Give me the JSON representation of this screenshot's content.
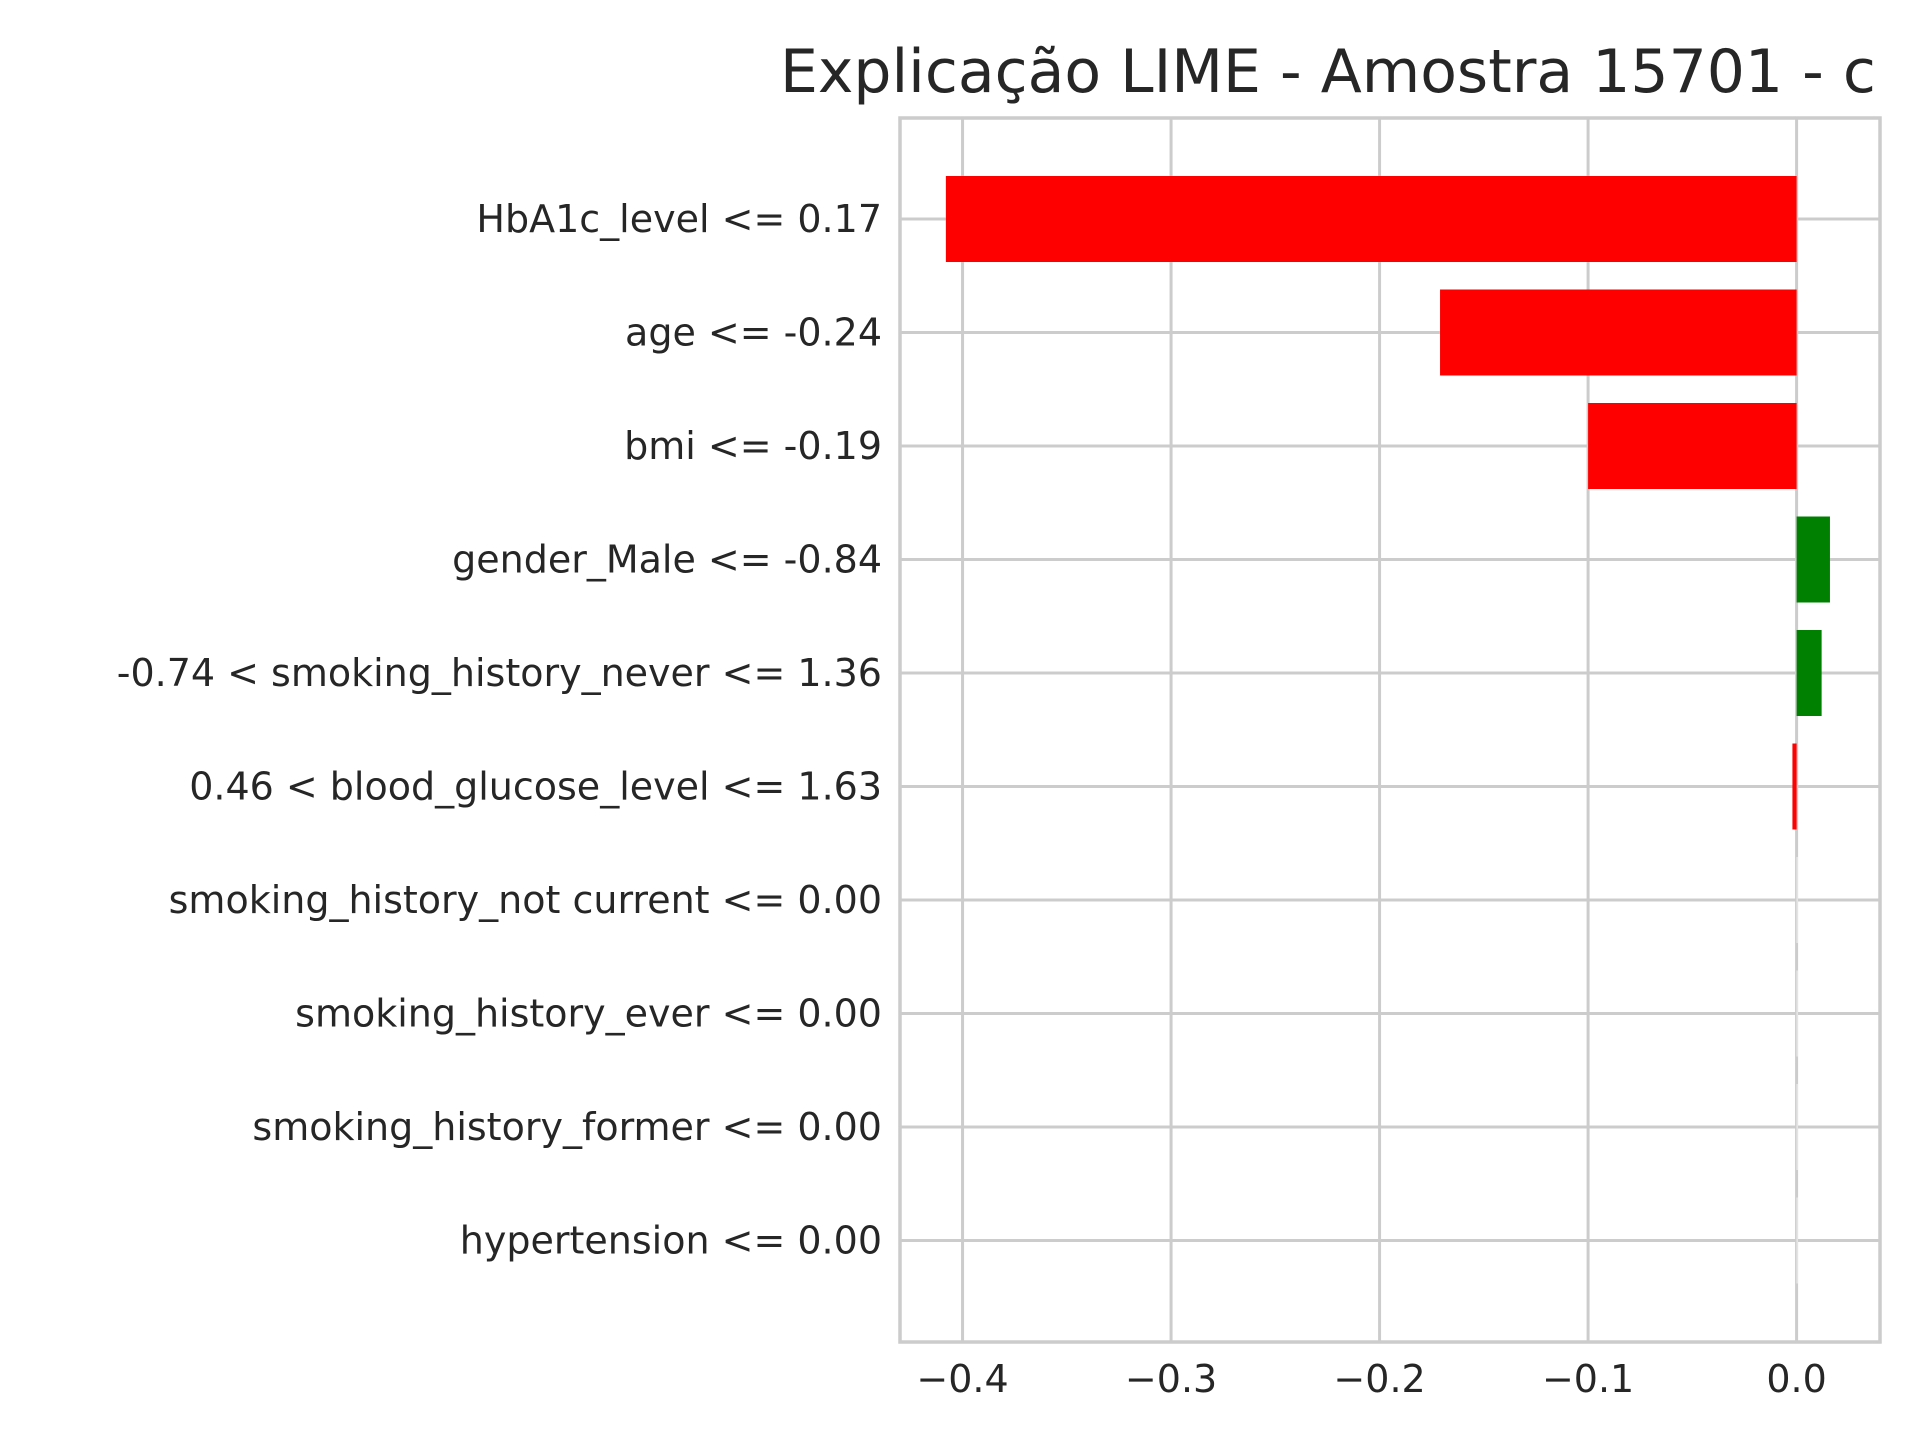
{
  "chart_data": {
    "type": "bar",
    "orientation": "horizontal",
    "title": "Explicação LIME - Amostra 15701 - c",
    "xlabel": "",
    "ylabel": "",
    "xlim": [
      -0.43,
      0.04
    ],
    "xticks": [
      -0.4,
      -0.3,
      -0.2,
      -0.1,
      0.0
    ],
    "xtick_labels": [
      "−0.4",
      "−0.3",
      "−0.2",
      "−0.1",
      "0.0"
    ],
    "grid": true,
    "categories": [
      "HbA1c_level <= 0.17",
      "age <= -0.24",
      "bmi <= -0.19",
      "gender_Male <= -0.84",
      "-0.74 < smoking_history_never <= 1.36",
      "0.46 < blood_glucose_level <= 1.63",
      "smoking_history_not current <= 0.00",
      "smoking_history_ever <= 0.00",
      "smoking_history_former <= 0.00",
      "hypertension <= 0.00"
    ],
    "values": [
      -0.408,
      -0.171,
      -0.1,
      0.016,
      0.012,
      -0.002,
      0.0,
      0.0,
      0.0,
      0.0
    ],
    "colors": {
      "positive": "#008000",
      "negative": "#ff0000"
    }
  }
}
